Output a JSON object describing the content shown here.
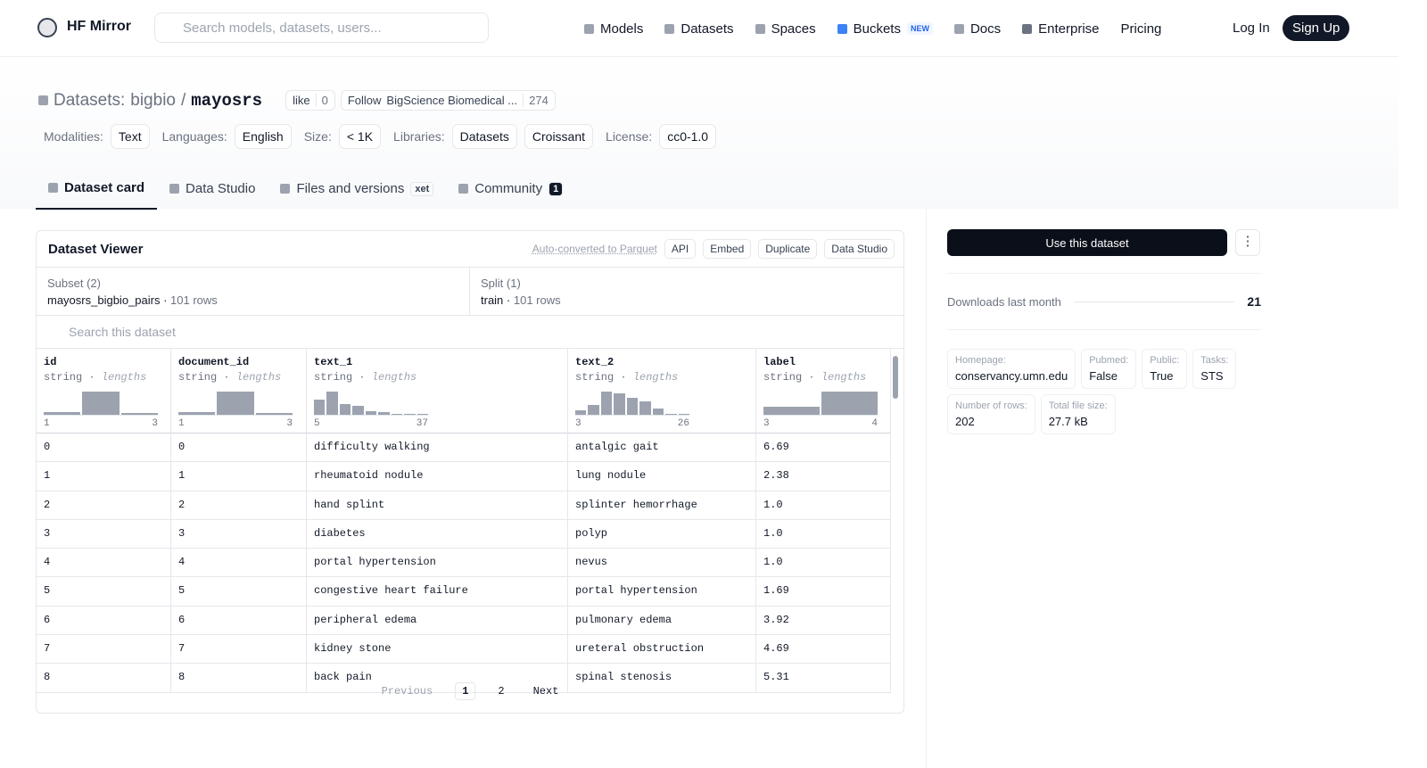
{
  "nav": {
    "brand": "HF Mirror",
    "search": "Search models, datasets, users...",
    "links": [
      {
        "label": "Models"
      },
      {
        "label": "Datasets"
      },
      {
        "label": "Spaces"
      },
      {
        "label": "Buckets",
        "badge": "NEW"
      },
      {
        "label": "Docs"
      },
      {
        "label": "Enterprise"
      },
      {
        "label": "Pricing"
      }
    ],
    "login": "Log In",
    "signup": "Sign Up"
  },
  "header": {
    "prefix": "Datasets:",
    "owner": "bigbio",
    "separator": "/",
    "name": "mayosrs",
    "like": "like",
    "likes": 0,
    "follow": "Follow",
    "org": "BigScience Biomedical ...",
    "followers": 274,
    "tags": [
      {
        "label": "Modalities:",
        "items": [
          "Text"
        ]
      },
      {
        "label": "Languages:",
        "items": [
          "English"
        ]
      },
      {
        "label": "Size:",
        "items": [
          "< 1K"
        ]
      },
      {
        "label": "Libraries:",
        "items": [
          "Datasets",
          "Croissant"
        ]
      },
      {
        "label": "License:",
        "items": [
          "cc0-1.0"
        ]
      }
    ]
  },
  "tabs": [
    {
      "label": "Dataset card"
    },
    {
      "label": "Data Studio"
    },
    {
      "label": "Files and versions",
      "badge": "xet"
    },
    {
      "label": "Community",
      "badge": 1
    }
  ],
  "viewer": {
    "title": "Dataset Viewer",
    "autoconverted": "Auto-converted to Parquet",
    "buttons": [
      "API",
      "Embed",
      "Duplicate",
      "Data Studio"
    ],
    "subset": {
      "label": "Subset (2)",
      "value": "mayosrs_bigbio_pairs",
      "rows": "101 rows"
    },
    "split": {
      "label": "Split (1)",
      "value": "train",
      "rows": "101 rows"
    },
    "search": "Search this dataset",
    "columns": [
      {
        "name": "id",
        "type": "string",
        "stat": "lengths",
        "min": 1,
        "max": 3,
        "hist": [
          3,
          25,
          2
        ]
      },
      {
        "name": "document_id",
        "type": "string",
        "stat": "lengths",
        "min": 1,
        "max": 3,
        "hist": [
          3,
          25,
          2
        ]
      },
      {
        "name": "text_1",
        "type": "string",
        "stat": "lengths",
        "min": 5,
        "max": 37,
        "hist": [
          16,
          25,
          12,
          10,
          4,
          3,
          1,
          1,
          1
        ]
      },
      {
        "name": "text_2",
        "type": "string",
        "stat": "lengths",
        "min": 3,
        "max": 26,
        "hist": [
          5,
          11,
          25,
          23,
          18,
          14,
          7,
          1,
          1
        ]
      },
      {
        "name": "label",
        "type": "string",
        "stat": "lengths",
        "min": 3,
        "max": 4,
        "hist": [
          9,
          25
        ]
      }
    ],
    "rows": [
      [
        0,
        0,
        "difficulty walking",
        "antalgic gait",
        "6.69"
      ],
      [
        1,
        1,
        "rheumatoid nodule",
        "lung nodule",
        "2.38"
      ],
      [
        2,
        2,
        "hand splint",
        "splinter hemorrhage",
        "1.0"
      ],
      [
        3,
        3,
        "diabetes",
        "polyp",
        "1.0"
      ],
      [
        4,
        4,
        "portal hypertension",
        "nevus",
        "1.0"
      ],
      [
        5,
        5,
        "congestive heart failure",
        "portal hypertension",
        "1.69"
      ],
      [
        6,
        6,
        "peripheral edema",
        "pulmonary edema",
        "3.92"
      ],
      [
        7,
        7,
        "kidney stone",
        "ureteral obstruction",
        "4.69"
      ],
      [
        8,
        8,
        "back pain",
        "spinal stenosis",
        "5.31"
      ]
    ],
    "pagination": {
      "previous": "Previous",
      "pages": [
        1,
        2
      ],
      "next": "Next"
    }
  },
  "sidebar": {
    "use": "Use this dataset",
    "downloads_label": "Downloads last month",
    "downloads": 21,
    "metadata": [
      {
        "key": "Homepage:",
        "value": "conservancy.umn.edu"
      },
      {
        "key": "Pubmed:",
        "value": "False"
      },
      {
        "key": "Public:",
        "value": "True"
      },
      {
        "key": "Tasks:",
        "value": "STS"
      },
      {
        "key": "Number of rows:",
        "value": 202
      },
      {
        "key": "Total file size:",
        "value": "27.7 kB"
      }
    ]
  }
}
